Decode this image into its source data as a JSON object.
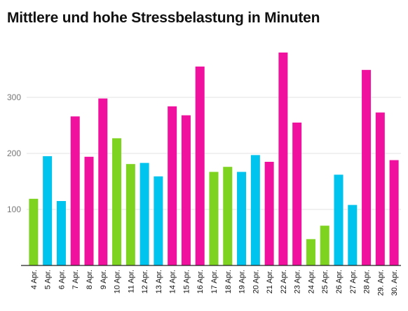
{
  "chart_data": {
    "type": "bar",
    "title": "Mittlere und hohe Stressbelastung in Minuten",
    "xlabel": "",
    "ylabel": "",
    "ylim": [
      0,
      400
    ],
    "yticks": [
      100,
      200,
      300
    ],
    "grid": true,
    "categories": [
      "4 Apr.",
      "5 Apr.",
      "6 Apr.",
      "7 Apr.",
      "8 Apr.",
      "9 Apr.",
      "10 Apr.",
      "11 Apr.",
      "12 Apr.",
      "13 Apr.",
      "14 Apr.",
      "15 Apr.",
      "16 Apr.",
      "17 Apr.",
      "18 Apr.",
      "19 Apr.",
      "20 Apr.",
      "21 Apr.",
      "22 Apr.",
      "23 Apr.",
      "24 Apr.",
      "25 Apr.",
      "26 Apr.",
      "27 Apr.",
      "28 Apr.",
      "29. Apr.",
      "30. Apr."
    ],
    "values": [
      119,
      195,
      115,
      266,
      194,
      298,
      227,
      181,
      183,
      159,
      284,
      268,
      355,
      167,
      176,
      167,
      197,
      185,
      380,
      255,
      47,
      71,
      162,
      108,
      349,
      273,
      188
    ],
    "bar_colors": [
      "#7ed321",
      "#00c3ee",
      "#00c3ee",
      "#f0119e",
      "#f0119e",
      "#f0119e",
      "#7ed321",
      "#7ed321",
      "#00c3ee",
      "#00c3ee",
      "#f0119e",
      "#f0119e",
      "#f0119e",
      "#7ed321",
      "#7ed321",
      "#00c3ee",
      "#00c3ee",
      "#f0119e",
      "#f0119e",
      "#f0119e",
      "#7ed321",
      "#7ed321",
      "#00c3ee",
      "#00c3ee",
      "#f0119e",
      "#f0119e",
      "#f0119e"
    ]
  }
}
